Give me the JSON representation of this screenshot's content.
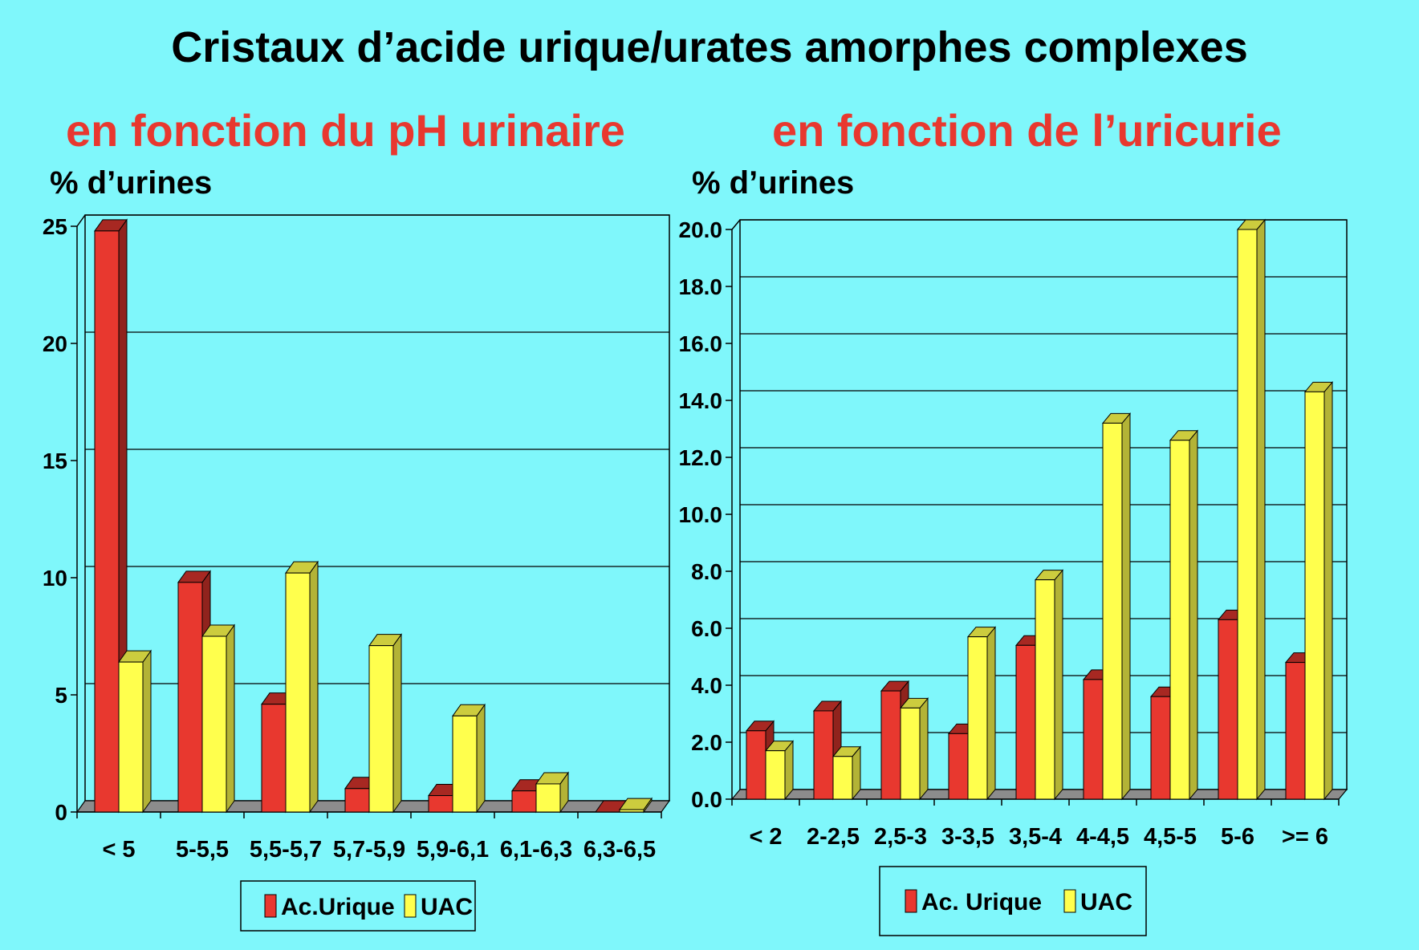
{
  "title": "Cristaux d’acide urique/urates amorphes complexes",
  "chart_data": [
    {
      "type": "bar",
      "subtitle": "en fonction du pH urinaire",
      "ylabel": "% d’urines",
      "ytick_labels": [
        "0",
        "5",
        "10",
        "15",
        "20",
        "25"
      ],
      "ylim": [
        0,
        25
      ],
      "grid": true,
      "legend_placement": "bottom",
      "categories": [
        "< 5",
        "5-5,5",
        "5,5-5,7",
        "5,7-5,9",
        "5,9-6,1",
        "6,1-6,3",
        "6,3-6,5"
      ],
      "series": [
        {
          "name": "Ac.Urique",
          "color": "#e8382f",
          "values": [
            24.8,
            9.8,
            4.6,
            1.0,
            0.7,
            0.9,
            0.0
          ]
        },
        {
          "name": "UAC",
          "color": "#ffff4d",
          "values": [
            6.4,
            7.5,
            10.2,
            7.1,
            4.1,
            1.2,
            0.1
          ]
        }
      ]
    },
    {
      "type": "bar",
      "subtitle": "en fonction de l’uricurie",
      "ylabel": "% d’urines",
      "ytick_labels": [
        "0.0",
        "2.0",
        "4.0",
        "6.0",
        "8.0",
        "10.0",
        "12.0",
        "14.0",
        "16.0",
        "18.0",
        "20.0"
      ],
      "ylim": [
        0,
        20
      ],
      "grid": true,
      "legend_placement": "bottom",
      "categories": [
        "< 2",
        "2-2,5",
        "2,5-3",
        "3-3,5",
        "3,5-4",
        "4-4,5",
        "4,5-5",
        "5-6",
        ">= 6"
      ],
      "series": [
        {
          "name": "Ac. Urique",
          "color": "#e8382f",
          "values": [
            2.4,
            3.1,
            3.8,
            2.3,
            5.4,
            4.2,
            3.6,
            6.3,
            4.8
          ]
        },
        {
          "name": "UAC",
          "color": "#ffff4d",
          "values": [
            1.7,
            1.5,
            3.2,
            5.7,
            7.7,
            13.2,
            12.6,
            20.0,
            14.3
          ]
        }
      ]
    }
  ]
}
